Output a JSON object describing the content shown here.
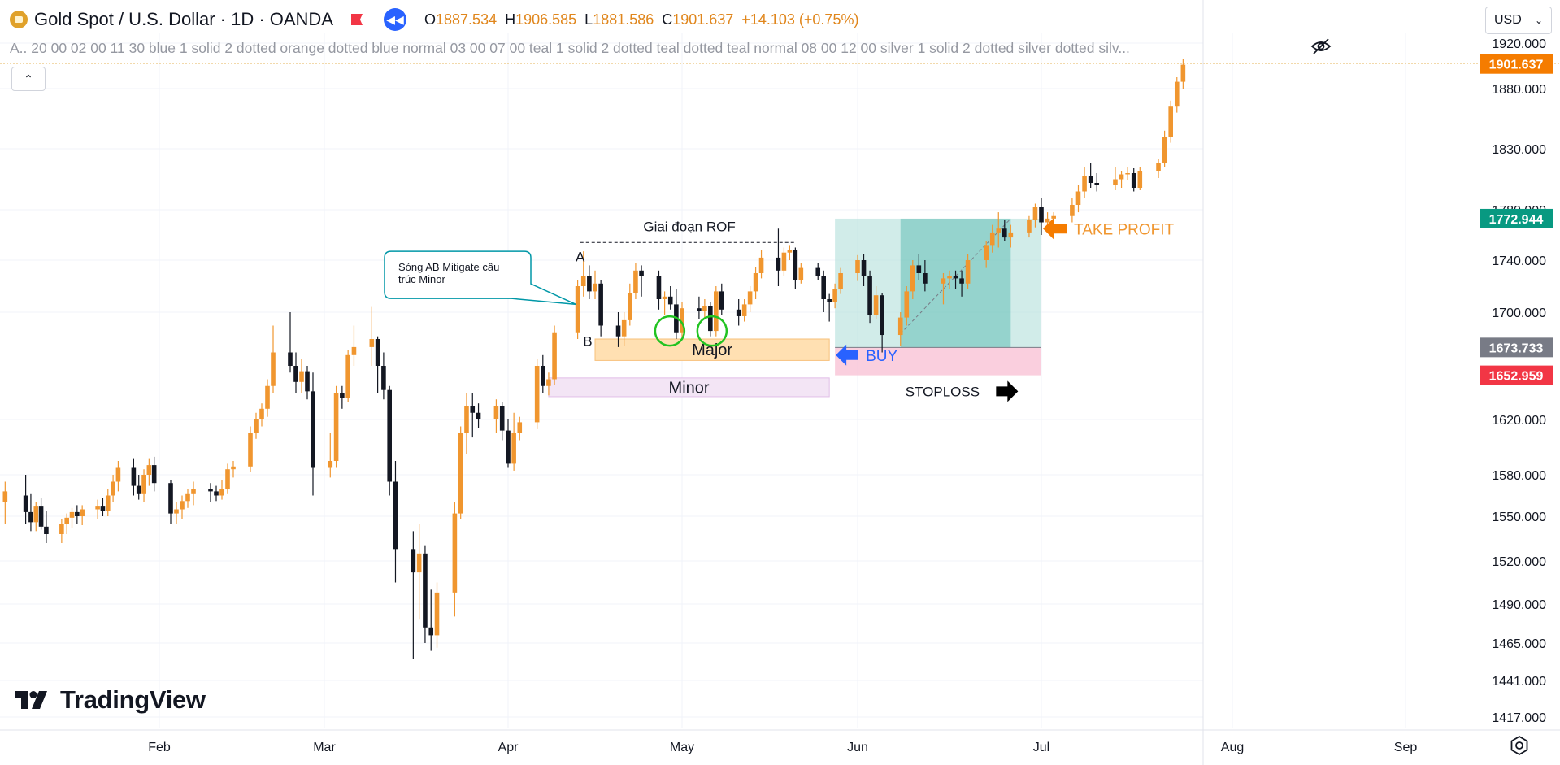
{
  "header": {
    "symbol": "Gold Spot / U.S. Dollar · 1D · OANDA",
    "open_label": "O",
    "open": "1887.534",
    "high_label": "H",
    "high": "1906.585",
    "low_label": "L",
    "low": "1881.586",
    "close_label": "C",
    "close": "1901.637",
    "change": "+14.103 (+0.75%)"
  },
  "indicator_legend": "A.. 20 00 02 00 11 30 blue 1 solid 2 dotted orange dotted blue normal 03 00 07 00 teal 1 solid 2 dotted teal dotted teal normal 08 00 12 00 silver 1 solid 2 dotted silver dotted silv...",
  "currency": "USD",
  "brand": "TradingView",
  "colors": {
    "up": "#f0962f",
    "down": "#131722",
    "teal": "#089981",
    "red": "#f23645",
    "orange_tag": "#f57c00",
    "gray_tag": "#787b86",
    "blue": "#2962ff"
  },
  "chart_data": {
    "type": "candlestick",
    "title": "Gold Spot / U.S. Dollar · 1D · OANDA",
    "x_ticks": [
      "Feb",
      "Mar",
      "Apr",
      "May",
      "Jun",
      "Jul",
      "Aug",
      "Sep"
    ],
    "y_ticks": [
      "1920.000",
      "1880.000",
      "1830.000",
      "1780.000",
      "1740.000",
      "1700.000",
      "1620.000",
      "1580.000",
      "1550.000",
      "1520.000",
      "1490.000",
      "1465.000",
      "1441.000",
      "1417.000"
    ],
    "price_tags": [
      {
        "label": "1901.637",
        "value": 1901.637,
        "color": "#f57c00"
      },
      {
        "label": "1772.944",
        "value": 1772.944,
        "color": "#089981"
      },
      {
        "label": "1673.733",
        "value": 1673.733,
        "color": "#787b86"
      },
      {
        "label": "1652.959",
        "value": 1652.959,
        "color": "#f23645"
      }
    ],
    "candles": [
      {
        "x": "2020-01-02",
        "o": 1560,
        "h": 1575,
        "l": 1545,
        "c": 1568
      },
      {
        "x": "2020-01-06",
        "o": 1565,
        "h": 1580,
        "l": 1545,
        "c": 1553
      },
      {
        "x": "2020-01-07",
        "o": 1553,
        "h": 1566,
        "l": 1540,
        "c": 1546
      },
      {
        "x": "2020-01-08",
        "o": 1546,
        "h": 1560,
        "l": 1540,
        "c": 1557
      },
      {
        "x": "2020-01-09",
        "o": 1557,
        "h": 1563,
        "l": 1541,
        "c": 1543
      },
      {
        "x": "2020-01-10",
        "o": 1543,
        "h": 1554,
        "l": 1532,
        "c": 1538
      },
      {
        "x": "2020-01-13",
        "o": 1538,
        "h": 1548,
        "l": 1532,
        "c": 1545
      },
      {
        "x": "2020-01-14",
        "o": 1545,
        "h": 1552,
        "l": 1538,
        "c": 1549
      },
      {
        "x": "2020-01-15",
        "o": 1549,
        "h": 1556,
        "l": 1542,
        "c": 1553
      },
      {
        "x": "2020-01-16",
        "o": 1553,
        "h": 1558,
        "l": 1545,
        "c": 1550
      },
      {
        "x": "2020-01-17",
        "o": 1550,
        "h": 1558,
        "l": 1544,
        "c": 1555
      },
      {
        "x": "2020-01-20",
        "o": 1555,
        "h": 1562,
        "l": 1548,
        "c": 1557
      },
      {
        "x": "2020-01-21",
        "o": 1557,
        "h": 1563,
        "l": 1550,
        "c": 1554
      },
      {
        "x": "2020-01-22",
        "o": 1554,
        "h": 1570,
        "l": 1550,
        "c": 1565
      },
      {
        "x": "2020-01-23",
        "o": 1565,
        "h": 1580,
        "l": 1560,
        "c": 1575
      },
      {
        "x": "2020-01-24",
        "o": 1575,
        "h": 1590,
        "l": 1568,
        "c": 1585
      },
      {
        "x": "2020-01-27",
        "o": 1585,
        "h": 1592,
        "l": 1565,
        "c": 1572
      },
      {
        "x": "2020-01-28",
        "o": 1572,
        "h": 1580,
        "l": 1562,
        "c": 1566
      },
      {
        "x": "2020-01-29",
        "o": 1566,
        "h": 1584,
        "l": 1560,
        "c": 1580
      },
      {
        "x": "2020-01-30",
        "o": 1580,
        "h": 1592,
        "l": 1572,
        "c": 1587
      },
      {
        "x": "2020-01-31",
        "o": 1587,
        "h": 1593,
        "l": 1568,
        "c": 1574
      },
      {
        "x": "2020-02-03",
        "o": 1574,
        "h": 1576,
        "l": 1545,
        "c": 1552
      },
      {
        "x": "2020-02-04",
        "o": 1552,
        "h": 1560,
        "l": 1545,
        "c": 1555
      },
      {
        "x": "2020-02-05",
        "o": 1555,
        "h": 1565,
        "l": 1548,
        "c": 1561
      },
      {
        "x": "2020-02-06",
        "o": 1561,
        "h": 1570,
        "l": 1556,
        "c": 1566
      },
      {
        "x": "2020-02-07",
        "o": 1566,
        "h": 1575,
        "l": 1558,
        "c": 1570
      },
      {
        "x": "2020-02-10",
        "o": 1570,
        "h": 1574,
        "l": 1560,
        "c": 1568
      },
      {
        "x": "2020-02-11",
        "o": 1568,
        "h": 1572,
        "l": 1561,
        "c": 1565
      },
      {
        "x": "2020-02-12",
        "o": 1565,
        "h": 1576,
        "l": 1562,
        "c": 1570
      },
      {
        "x": "2020-02-13",
        "o": 1570,
        "h": 1588,
        "l": 1566,
        "c": 1584
      },
      {
        "x": "2020-02-14",
        "o": 1584,
        "h": 1590,
        "l": 1578,
        "c": 1586
      },
      {
        "x": "2020-02-17",
        "o": 1586,
        "h": 1615,
        "l": 1582,
        "c": 1610
      },
      {
        "x": "2020-02-18",
        "o": 1610,
        "h": 1625,
        "l": 1606,
        "c": 1620
      },
      {
        "x": "2020-02-19",
        "o": 1620,
        "h": 1632,
        "l": 1615,
        "c": 1628
      },
      {
        "x": "2020-02-20",
        "o": 1628,
        "h": 1650,
        "l": 1622,
        "c": 1645
      },
      {
        "x": "2020-02-21",
        "o": 1645,
        "h": 1690,
        "l": 1640,
        "c": 1670
      },
      {
        "x": "2020-02-24",
        "o": 1670,
        "h": 1700,
        "l": 1655,
        "c": 1660
      },
      {
        "x": "2020-02-25",
        "o": 1660,
        "h": 1670,
        "l": 1640,
        "c": 1648
      },
      {
        "x": "2020-02-26",
        "o": 1648,
        "h": 1665,
        "l": 1640,
        "c": 1656
      },
      {
        "x": "2020-02-27",
        "o": 1656,
        "h": 1660,
        "l": 1635,
        "c": 1641
      },
      {
        "x": "2020-02-28",
        "o": 1641,
        "h": 1655,
        "l": 1565,
        "c": 1585
      },
      {
        "x": "2020-03-02",
        "o": 1585,
        "h": 1610,
        "l": 1578,
        "c": 1590
      },
      {
        "x": "2020-03-03",
        "o": 1590,
        "h": 1645,
        "l": 1585,
        "c": 1640
      },
      {
        "x": "2020-03-04",
        "o": 1640,
        "h": 1645,
        "l": 1628,
        "c": 1636
      },
      {
        "x": "2020-03-05",
        "o": 1636,
        "h": 1672,
        "l": 1633,
        "c": 1668
      },
      {
        "x": "2020-03-06",
        "o": 1668,
        "h": 1690,
        "l": 1660,
        "c": 1674
      },
      {
        "x": "2020-03-09",
        "o": 1674,
        "h": 1704,
        "l": 1660,
        "c": 1680
      },
      {
        "x": "2020-03-10",
        "o": 1680,
        "h": 1682,
        "l": 1640,
        "c": 1660
      },
      {
        "x": "2020-03-11",
        "o": 1660,
        "h": 1670,
        "l": 1635,
        "c": 1642
      },
      {
        "x": "2020-03-12",
        "o": 1642,
        "h": 1645,
        "l": 1565,
        "c": 1575
      },
      {
        "x": "2020-03-13",
        "o": 1575,
        "h": 1590,
        "l": 1505,
        "c": 1528
      },
      {
        "x": "2020-03-16",
        "o": 1528,
        "h": 1540,
        "l": 1455,
        "c": 1512
      },
      {
        "x": "2020-03-17",
        "o": 1512,
        "h": 1545,
        "l": 1480,
        "c": 1525
      },
      {
        "x": "2020-03-18",
        "o": 1525,
        "h": 1530,
        "l": 1465,
        "c": 1475
      },
      {
        "x": "2020-03-19",
        "o": 1475,
        "h": 1500,
        "l": 1460,
        "c": 1470
      },
      {
        "x": "2020-03-20",
        "o": 1470,
        "h": 1505,
        "l": 1462,
        "c": 1498
      },
      {
        "x": "2020-03-23",
        "o": 1498,
        "h": 1560,
        "l": 1482,
        "c": 1552
      },
      {
        "x": "2020-03-24",
        "o": 1552,
        "h": 1615,
        "l": 1548,
        "c": 1610
      },
      {
        "x": "2020-03-25",
        "o": 1610,
        "h": 1640,
        "l": 1595,
        "c": 1630
      },
      {
        "x": "2020-03-26",
        "o": 1630,
        "h": 1640,
        "l": 1607,
        "c": 1625
      },
      {
        "x": "2020-03-27",
        "o": 1625,
        "h": 1632,
        "l": 1614,
        "c": 1620
      },
      {
        "x": "2020-03-30",
        "o": 1620,
        "h": 1635,
        "l": 1610,
        "c": 1630
      },
      {
        "x": "2020-03-31",
        "o": 1630,
        "h": 1633,
        "l": 1605,
        "c": 1612
      },
      {
        "x": "2020-04-01",
        "o": 1612,
        "h": 1620,
        "l": 1585,
        "c": 1588
      },
      {
        "x": "2020-04-02",
        "o": 1588,
        "h": 1625,
        "l": 1583,
        "c": 1610
      },
      {
        "x": "2020-04-03",
        "o": 1610,
        "h": 1622,
        "l": 1605,
        "c": 1618
      },
      {
        "x": "2020-04-06",
        "o": 1618,
        "h": 1665,
        "l": 1613,
        "c": 1660
      },
      {
        "x": "2020-04-07",
        "o": 1660,
        "h": 1668,
        "l": 1640,
        "c": 1645
      },
      {
        "x": "2020-04-08",
        "o": 1645,
        "h": 1655,
        "l": 1638,
        "c": 1650
      },
      {
        "x": "2020-04-09",
        "o": 1650,
        "h": 1690,
        "l": 1646,
        "c": 1685
      },
      {
        "x": "2020-04-13",
        "o": 1685,
        "h": 1725,
        "l": 1680,
        "c": 1720
      },
      {
        "x": "2020-04-14",
        "o": 1720,
        "h": 1747,
        "l": 1712,
        "c": 1728
      },
      {
        "x": "2020-04-15",
        "o": 1728,
        "h": 1736,
        "l": 1710,
        "c": 1716
      },
      {
        "x": "2020-04-16",
        "o": 1716,
        "h": 1732,
        "l": 1710,
        "c": 1722
      },
      {
        "x": "2020-04-17",
        "o": 1722,
        "h": 1725,
        "l": 1682,
        "c": 1690
      },
      {
        "x": "2020-04-20",
        "o": 1690,
        "h": 1700,
        "l": 1674,
        "c": 1682
      },
      {
        "x": "2020-04-21",
        "o": 1682,
        "h": 1700,
        "l": 1675,
        "c": 1694
      },
      {
        "x": "2020-04-22",
        "o": 1694,
        "h": 1722,
        "l": 1690,
        "c": 1715
      },
      {
        "x": "2020-04-23",
        "o": 1715,
        "h": 1738,
        "l": 1710,
        "c": 1732
      },
      {
        "x": "2020-04-24",
        "o": 1732,
        "h": 1736,
        "l": 1712,
        "c": 1728
      },
      {
        "x": "2020-04-27",
        "o": 1728,
        "h": 1732,
        "l": 1702,
        "c": 1710
      },
      {
        "x": "2020-04-28",
        "o": 1710,
        "h": 1716,
        "l": 1698,
        "c": 1712
      },
      {
        "x": "2020-04-29",
        "o": 1712,
        "h": 1720,
        "l": 1702,
        "c": 1706
      },
      {
        "x": "2020-04-30",
        "o": 1706,
        "h": 1718,
        "l": 1680,
        "c": 1685
      },
      {
        "x": "2020-05-01",
        "o": 1685,
        "h": 1708,
        "l": 1680,
        "c": 1703
      },
      {
        "x": "2020-05-04",
        "o": 1703,
        "h": 1712,
        "l": 1695,
        "c": 1701
      },
      {
        "x": "2020-05-05",
        "o": 1701,
        "h": 1710,
        "l": 1695,
        "c": 1705
      },
      {
        "x": "2020-05-06",
        "o": 1705,
        "h": 1708,
        "l": 1682,
        "c": 1686
      },
      {
        "x": "2020-05-07",
        "o": 1686,
        "h": 1720,
        "l": 1682,
        "c": 1716
      },
      {
        "x": "2020-05-08",
        "o": 1716,
        "h": 1722,
        "l": 1698,
        "c": 1702
      },
      {
        "x": "2020-05-11",
        "o": 1702,
        "h": 1710,
        "l": 1690,
        "c": 1697
      },
      {
        "x": "2020-05-12",
        "o": 1697,
        "h": 1710,
        "l": 1693,
        "c": 1706
      },
      {
        "x": "2020-05-13",
        "o": 1706,
        "h": 1720,
        "l": 1700,
        "c": 1716
      },
      {
        "x": "2020-05-14",
        "o": 1716,
        "h": 1735,
        "l": 1710,
        "c": 1730
      },
      {
        "x": "2020-05-15",
        "o": 1730,
        "h": 1748,
        "l": 1726,
        "c": 1742
      },
      {
        "x": "2020-05-18",
        "o": 1742,
        "h": 1765,
        "l": 1720,
        "c": 1732
      },
      {
        "x": "2020-05-19",
        "o": 1732,
        "h": 1750,
        "l": 1728,
        "c": 1746
      },
      {
        "x": "2020-05-20",
        "o": 1746,
        "h": 1752,
        "l": 1740,
        "c": 1748
      },
      {
        "x": "2020-05-21",
        "o": 1748,
        "h": 1750,
        "l": 1718,
        "c": 1725
      },
      {
        "x": "2020-05-22",
        "o": 1725,
        "h": 1738,
        "l": 1722,
        "c": 1734
      },
      {
        "x": "2020-05-25",
        "o": 1734,
        "h": 1738,
        "l": 1725,
        "c": 1728
      },
      {
        "x": "2020-05-26",
        "o": 1728,
        "h": 1732,
        "l": 1700,
        "c": 1710
      },
      {
        "x": "2020-05-27",
        "o": 1710,
        "h": 1714,
        "l": 1693,
        "c": 1708
      },
      {
        "x": "2020-05-28",
        "o": 1708,
        "h": 1722,
        "l": 1703,
        "c": 1718
      },
      {
        "x": "2020-05-29",
        "o": 1718,
        "h": 1734,
        "l": 1714,
        "c": 1730
      },
      {
        "x": "2020-06-01",
        "o": 1730,
        "h": 1744,
        "l": 1724,
        "c": 1740
      },
      {
        "x": "2020-06-02",
        "o": 1740,
        "h": 1745,
        "l": 1720,
        "c": 1728
      },
      {
        "x": "2020-06-03",
        "o": 1728,
        "h": 1732,
        "l": 1692,
        "c": 1698
      },
      {
        "x": "2020-06-04",
        "o": 1698,
        "h": 1720,
        "l": 1695,
        "c": 1713
      },
      {
        "x": "2020-06-05",
        "o": 1713,
        "h": 1715,
        "l": 1670,
        "c": 1683
      },
      {
        "x": "2020-06-08",
        "o": 1683,
        "h": 1700,
        "l": 1675,
        "c": 1696
      },
      {
        "x": "2020-06-09",
        "o": 1696,
        "h": 1720,
        "l": 1690,
        "c": 1716
      },
      {
        "x": "2020-06-10",
        "o": 1716,
        "h": 1740,
        "l": 1710,
        "c": 1736
      },
      {
        "x": "2020-06-11",
        "o": 1736,
        "h": 1745,
        "l": 1725,
        "c": 1730
      },
      {
        "x": "2020-06-12",
        "o": 1730,
        "h": 1740,
        "l": 1716,
        "c": 1722
      },
      {
        "x": "2020-06-15",
        "o": 1722,
        "h": 1730,
        "l": 1706,
        "c": 1726
      },
      {
        "x": "2020-06-16",
        "o": 1726,
        "h": 1732,
        "l": 1718,
        "c": 1728
      },
      {
        "x": "2020-06-17",
        "o": 1728,
        "h": 1732,
        "l": 1718,
        "c": 1726
      },
      {
        "x": "2020-06-18",
        "o": 1726,
        "h": 1732,
        "l": 1712,
        "c": 1722
      },
      {
        "x": "2020-06-19",
        "o": 1722,
        "h": 1745,
        "l": 1718,
        "c": 1740
      },
      {
        "x": "2020-06-22",
        "o": 1740,
        "h": 1755,
        "l": 1734,
        "c": 1752
      },
      {
        "x": "2020-06-23",
        "o": 1752,
        "h": 1768,
        "l": 1746,
        "c": 1762
      },
      {
        "x": "2020-06-24",
        "o": 1762,
        "h": 1778,
        "l": 1750,
        "c": 1765
      },
      {
        "x": "2020-06-25",
        "o": 1765,
        "h": 1772,
        "l": 1755,
        "c": 1758
      },
      {
        "x": "2020-06-26",
        "o": 1758,
        "h": 1768,
        "l": 1750,
        "c": 1762
      },
      {
        "x": "2020-06-29",
        "o": 1762,
        "h": 1775,
        "l": 1758,
        "c": 1772
      },
      {
        "x": "2020-06-30",
        "o": 1772,
        "h": 1785,
        "l": 1766,
        "c": 1782
      },
      {
        "x": "2020-07-01",
        "o": 1782,
        "h": 1790,
        "l": 1760,
        "c": 1770
      },
      {
        "x": "2020-07-02",
        "o": 1770,
        "h": 1778,
        "l": 1762,
        "c": 1773
      },
      {
        "x": "2020-07-03",
        "o": 1773,
        "h": 1778,
        "l": 1768,
        "c": 1775
      },
      {
        "x": "2020-07-06",
        "o": 1775,
        "h": 1790,
        "l": 1770,
        "c": 1784
      },
      {
        "x": "2020-07-07",
        "o": 1784,
        "h": 1800,
        "l": 1778,
        "c": 1795
      },
      {
        "x": "2020-07-08",
        "o": 1795,
        "h": 1815,
        "l": 1790,
        "c": 1808
      },
      {
        "x": "2020-07-09",
        "o": 1808,
        "h": 1818,
        "l": 1798,
        "c": 1802
      },
      {
        "x": "2020-07-10",
        "o": 1802,
        "h": 1810,
        "l": 1795,
        "c": 1800
      },
      {
        "x": "2020-07-13",
        "o": 1800,
        "h": 1815,
        "l": 1796,
        "c": 1805
      },
      {
        "x": "2020-07-14",
        "o": 1805,
        "h": 1812,
        "l": 1798,
        "c": 1809
      },
      {
        "x": "2020-07-15",
        "o": 1809,
        "h": 1815,
        "l": 1804,
        "c": 1810
      },
      {
        "x": "2020-07-16",
        "o": 1810,
        "h": 1814,
        "l": 1795,
        "c": 1798
      },
      {
        "x": "2020-07-17",
        "o": 1798,
        "h": 1815,
        "l": 1796,
        "c": 1812
      },
      {
        "x": "2020-07-20",
        "o": 1812,
        "h": 1822,
        "l": 1806,
        "c": 1818
      },
      {
        "x": "2020-07-21",
        "o": 1818,
        "h": 1845,
        "l": 1815,
        "c": 1840
      },
      {
        "x": "2020-07-22",
        "o": 1840,
        "h": 1870,
        "l": 1835,
        "c": 1865
      },
      {
        "x": "2020-07-23",
        "o": 1865,
        "h": 1890,
        "l": 1860,
        "c": 1886
      },
      {
        "x": "2020-07-24",
        "o": 1886,
        "h": 1906,
        "l": 1880,
        "c": 1901
      }
    ],
    "annotations": {
      "rof_label": "Giai đoạn ROF",
      "point_a": "A",
      "point_b": "B",
      "major_label": "Major",
      "minor_label": "Minor",
      "callout": "Sóng AB Mitigate cấu trúc Minor",
      "buy_label": "BUY",
      "stoploss_label": "STOPLOSS",
      "take_profit_label": "TAKE PROFIT"
    }
  }
}
